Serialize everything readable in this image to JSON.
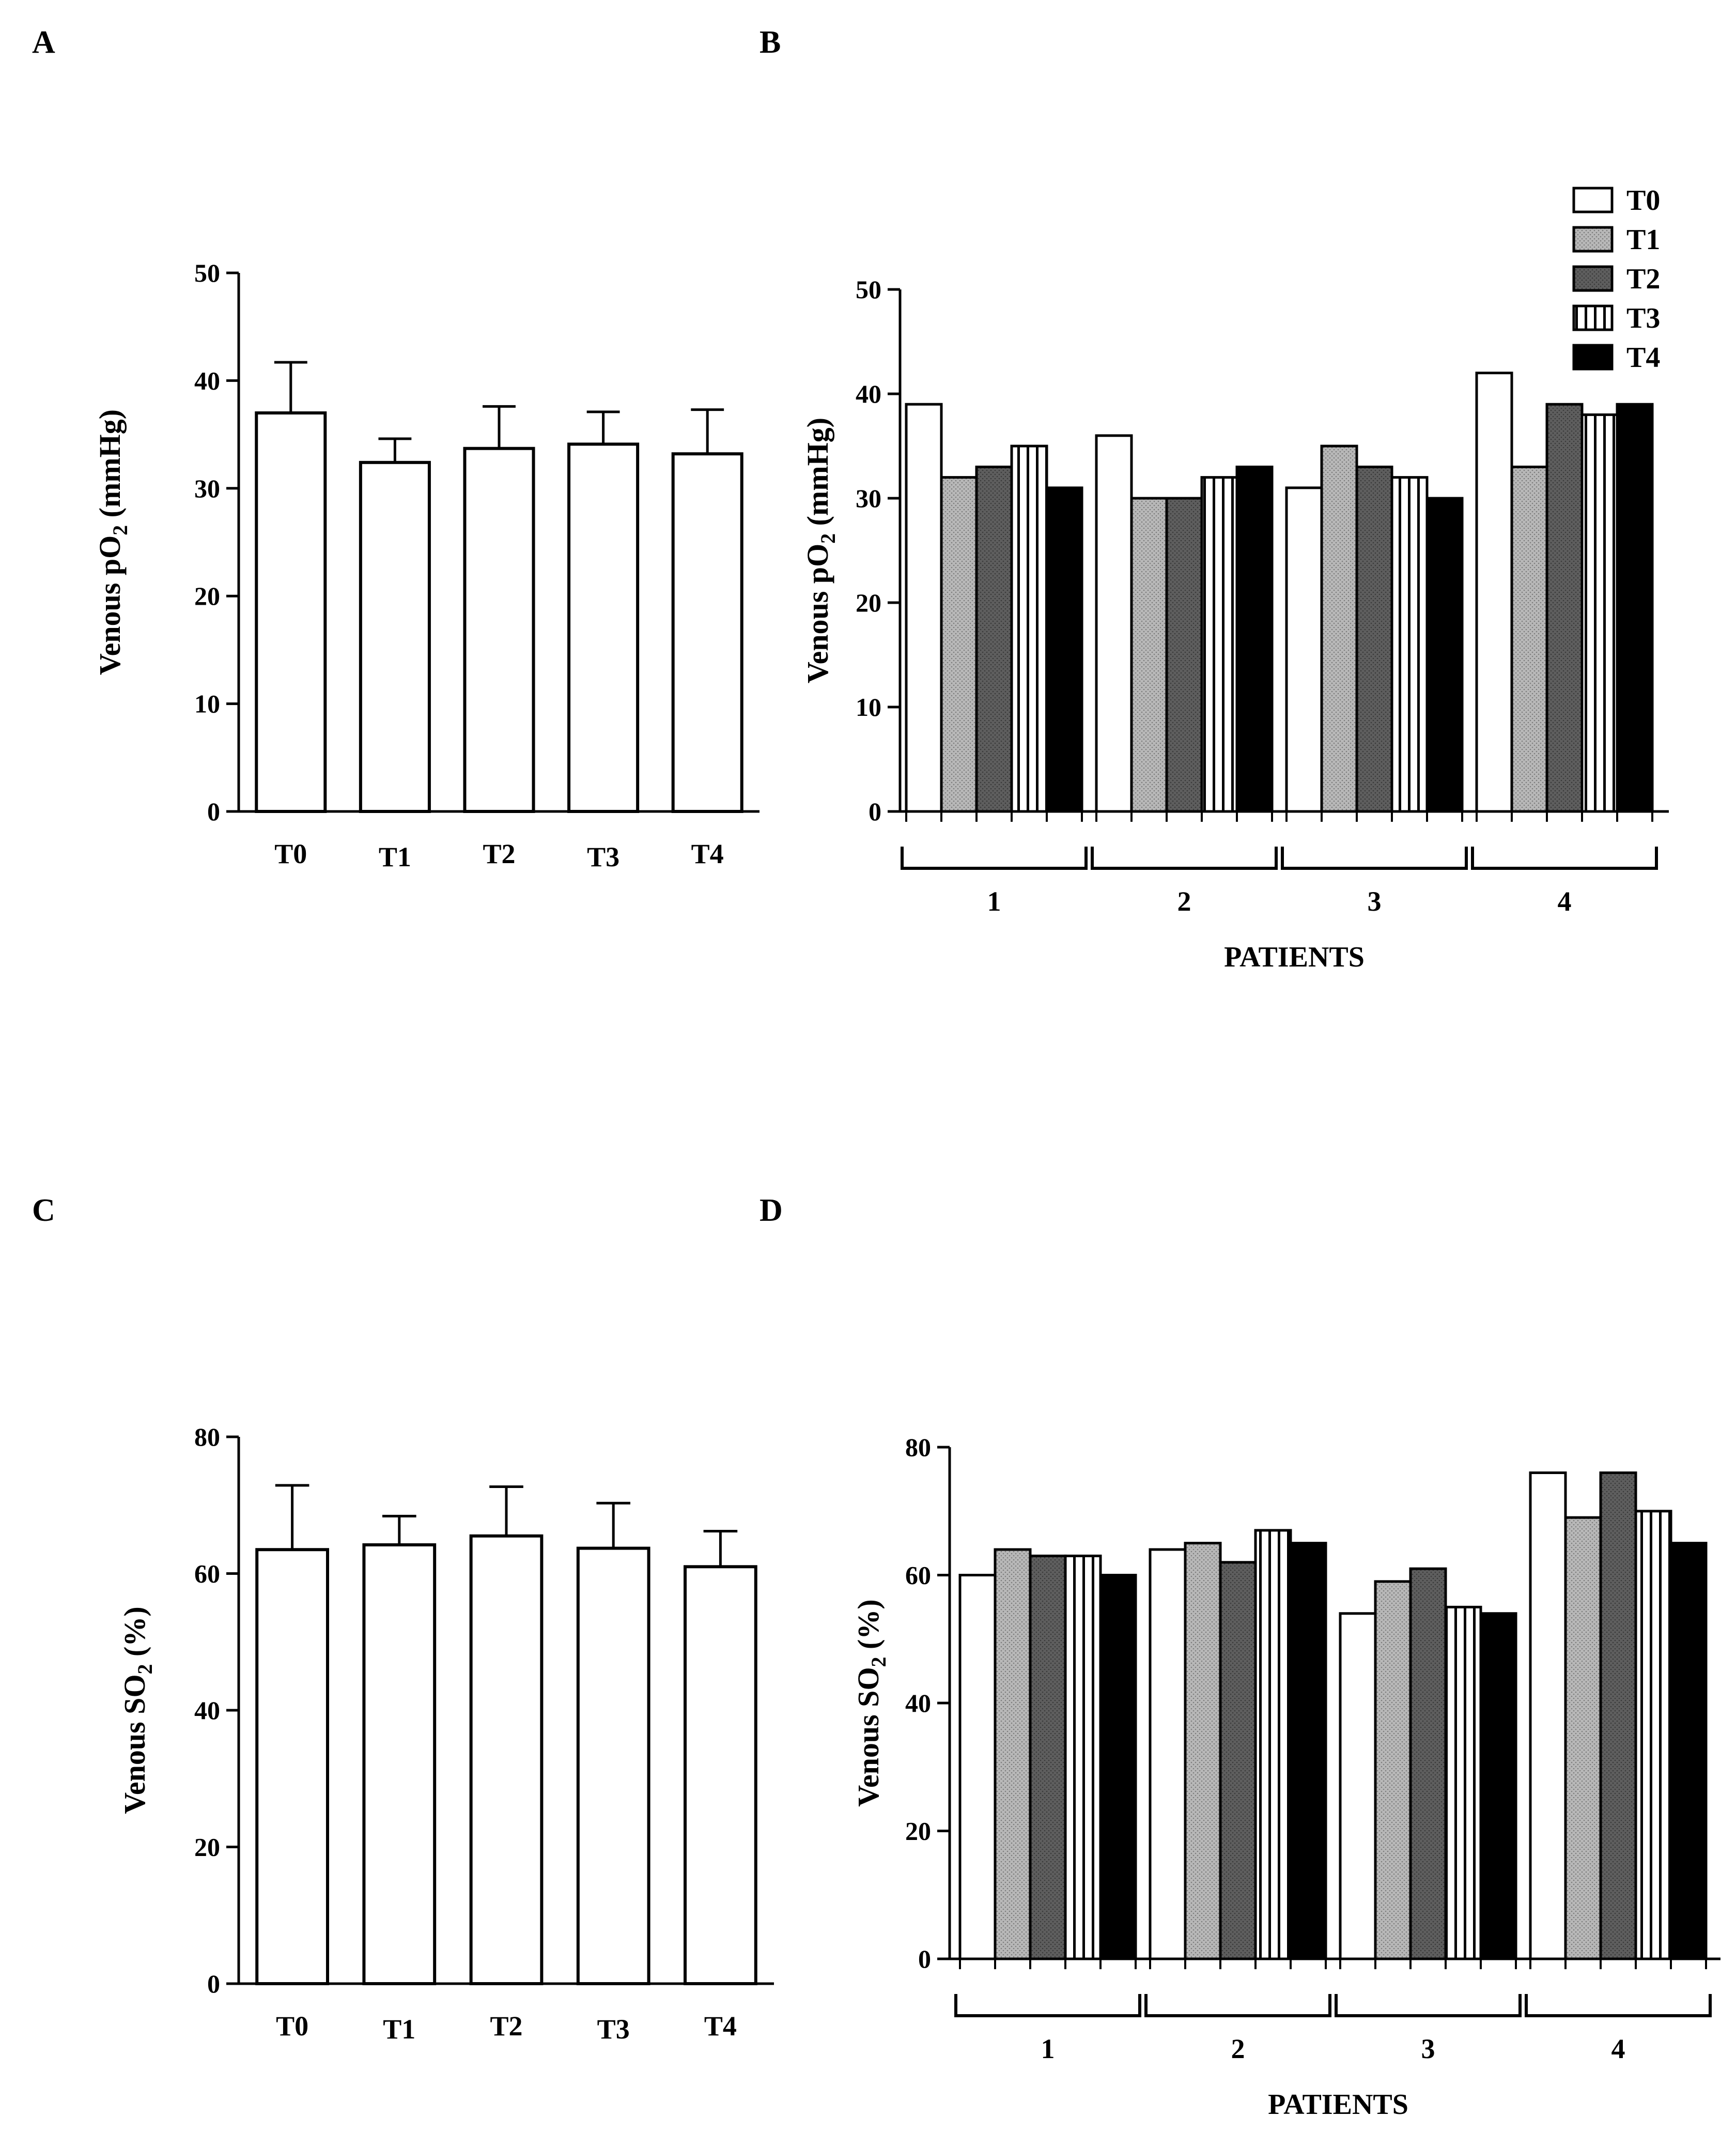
{
  "colors": {
    "ink": "#000000",
    "paper": "#ffffff",
    "t1_fill": "#b3b3b3",
    "t2_fill": "#666666",
    "t4_fill": "#000000"
  },
  "legend": [
    "T0",
    "T1",
    "T2",
    "T3",
    "T4"
  ],
  "chart_data": [
    {
      "panel": "A",
      "type": "bar",
      "ylabel": "Venous pO₂ (mmHg)",
      "ylabel_main": "Venous pO",
      "ylabel_sub": "2",
      "ylabel_tail": " (mmHg)",
      "ylim": [
        0,
        50
      ],
      "yticks": [
        0,
        10,
        20,
        30,
        40,
        50
      ],
      "categories": [
        "T0",
        "T1",
        "T2",
        "T3",
        "T4"
      ],
      "values": [
        37,
        32.4,
        33.7,
        34.1,
        33.2
      ],
      "errors": [
        4.7,
        2.2,
        3.9,
        3.0,
        4.1
      ]
    },
    {
      "panel": "B",
      "type": "bar",
      "ylabel": "Venous pO₂ (mmHg)",
      "ylabel_main": "Venous pO",
      "ylabel_sub": "2",
      "ylabel_tail": " (mmHg)",
      "xlabel": "PATIENTS",
      "ylim": [
        0,
        50
      ],
      "yticks": [
        0,
        10,
        20,
        30,
        40,
        50
      ],
      "categories": [
        "1",
        "2",
        "3",
        "4"
      ],
      "series": [
        {
          "name": "T0",
          "values": [
            39,
            36,
            31,
            42
          ]
        },
        {
          "name": "T1",
          "values": [
            32,
            30,
            35,
            33
          ]
        },
        {
          "name": "T2",
          "values": [
            33,
            30,
            33,
            39
          ]
        },
        {
          "name": "T3",
          "values": [
            35,
            32,
            32,
            38
          ]
        },
        {
          "name": "T4",
          "values": [
            31,
            33,
            30,
            39
          ]
        }
      ],
      "legend_position": "top-right"
    },
    {
      "panel": "C",
      "type": "bar",
      "ylabel": "Venous SO₂ (%)",
      "ylabel_main": "Venous SO",
      "ylabel_sub": "2",
      "ylabel_tail": " (%)",
      "ylim": [
        0,
        80
      ],
      "yticks": [
        0,
        20,
        40,
        60,
        80
      ],
      "categories": [
        "T0",
        "T1",
        "T2",
        "T3",
        "T4"
      ],
      "values": [
        63.5,
        64.2,
        65.5,
        63.7,
        61
      ],
      "errors": [
        9.4,
        4.2,
        7.2,
        6.6,
        5.2
      ]
    },
    {
      "panel": "D",
      "type": "bar",
      "ylabel": "Venous SO₂ (%)",
      "ylabel_main": "Venous SO",
      "ylabel_sub": "2",
      "ylabel_tail": " (%)",
      "xlabel": "PATIENTS",
      "ylim": [
        0,
        80
      ],
      "yticks": [
        0,
        20,
        40,
        60,
        80
      ],
      "categories": [
        "1",
        "2",
        "3",
        "4"
      ],
      "series": [
        {
          "name": "T0",
          "values": [
            60,
            64,
            54,
            76
          ]
        },
        {
          "name": "T1",
          "values": [
            64,
            65,
            59,
            69
          ]
        },
        {
          "name": "T2",
          "values": [
            63,
            62,
            61,
            76
          ]
        },
        {
          "name": "T3",
          "values": [
            63,
            67,
            55,
            70
          ]
        },
        {
          "name": "T4",
          "values": [
            60,
            65,
            54,
            65
          ]
        }
      ]
    }
  ]
}
